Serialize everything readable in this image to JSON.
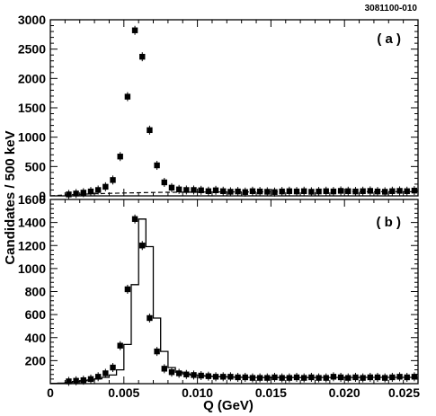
{
  "figure_id": "3081100-010",
  "chart_data": [
    {
      "panel": "( a )",
      "type": "scatter",
      "xlim": [
        0,
        0.025
      ],
      "ylim": [
        0,
        3000
      ],
      "y_ticks": [
        0,
        500,
        1000,
        1500,
        2000,
        2500,
        3000
      ],
      "y_tick_labels": [
        "0",
        "500",
        "1000",
        "1500",
        "2000",
        "2500",
        "3000"
      ],
      "x": [
        0.00125,
        0.00175,
        0.00225,
        0.00275,
        0.00325,
        0.00375,
        0.00425,
        0.00475,
        0.00525,
        0.00575,
        0.00625,
        0.00675,
        0.00725,
        0.00775,
        0.00825,
        0.00875,
        0.00925,
        0.00975,
        0.01025,
        0.01075,
        0.01125,
        0.01175,
        0.01225,
        0.01275,
        0.01325,
        0.01375,
        0.01425,
        0.01475,
        0.01525,
        0.01575,
        0.01625,
        0.01675,
        0.01725,
        0.01775,
        0.01825,
        0.01875,
        0.01925,
        0.01975,
        0.02025,
        0.02075,
        0.02125,
        0.02175,
        0.02225,
        0.02275,
        0.02325,
        0.02375,
        0.02425,
        0.02475
      ],
      "y": [
        25,
        40,
        55,
        75,
        100,
        155,
        270,
        670,
        1690,
        2820,
        2370,
        1120,
        520,
        230,
        140,
        110,
        100,
        100,
        95,
        80,
        95,
        80,
        70,
        75,
        65,
        80,
        75,
        70,
        65,
        75,
        80,
        75,
        80,
        70,
        75,
        80,
        75,
        85,
        80,
        75,
        80,
        85,
        75,
        70,
        80,
        85,
        80,
        90
      ],
      "background_curve": {
        "style": "dashed",
        "x": [
          0,
          0.001,
          0.002,
          0.003,
          0.004,
          0.005,
          0.006,
          0.007,
          0.008,
          0.009,
          0.01,
          0.012,
          0.014,
          0.016,
          0.018,
          0.02,
          0.022,
          0.025
        ],
        "y": [
          0,
          15,
          26,
          35,
          43,
          49,
          54,
          58,
          61,
          63,
          65,
          67,
          68,
          69,
          70,
          70,
          71,
          71
        ]
      }
    },
    {
      "panel": "( b )",
      "type": "scatter",
      "xlim": [
        0,
        0.025
      ],
      "ylim": [
        0,
        1600
      ],
      "y_ticks": [
        200,
        400,
        600,
        800,
        1000,
        1200,
        1400,
        1600
      ],
      "y_tick_labels": [
        "200",
        "400",
        "600",
        "800",
        "1000",
        "1200",
        "1400",
        "1600"
      ],
      "x": [
        0.00125,
        0.00175,
        0.00225,
        0.00275,
        0.00325,
        0.00375,
        0.00425,
        0.00475,
        0.00525,
        0.00575,
        0.00625,
        0.00675,
        0.00725,
        0.00775,
        0.00825,
        0.00875,
        0.00925,
        0.00975,
        0.01025,
        0.01075,
        0.01125,
        0.01175,
        0.01225,
        0.01275,
        0.01325,
        0.01375,
        0.01425,
        0.01475,
        0.01525,
        0.01575,
        0.01625,
        0.01675,
        0.01725,
        0.01775,
        0.01825,
        0.01875,
        0.01925,
        0.01975,
        0.02025,
        0.02075,
        0.02125,
        0.02175,
        0.02225,
        0.02275,
        0.02325,
        0.02375,
        0.02425,
        0.02475
      ],
      "y": [
        20,
        25,
        30,
        40,
        60,
        90,
        140,
        330,
        820,
        1430,
        1200,
        570,
        280,
        130,
        100,
        90,
        80,
        75,
        70,
        65,
        60,
        60,
        60,
        55,
        55,
        50,
        50,
        50,
        55,
        50,
        50,
        55,
        50,
        55,
        50,
        50,
        60,
        55,
        50,
        55,
        50,
        55,
        55,
        50,
        55,
        60,
        55,
        60
      ],
      "fit_histogram": {
        "style": "solid-step",
        "bin_edges": [
          0,
          0.0005,
          0.001,
          0.0015,
          0.002,
          0.0025,
          0.003,
          0.0035,
          0.004,
          0.0045,
          0.005,
          0.0055,
          0.006,
          0.0065,
          0.007,
          0.0075,
          0.008,
          0.0085,
          0.009,
          0.0095,
          0.01,
          0.0105,
          0.011,
          0.0115,
          0.012,
          0.0125,
          0.013,
          0.0135,
          0.014,
          0.0145,
          0.015,
          0.0155,
          0.016,
          0.0165,
          0.017,
          0.0175,
          0.018,
          0.0185,
          0.019,
          0.0195,
          0.02,
          0.0205,
          0.021,
          0.0215,
          0.022,
          0.0225,
          0.023,
          0.0235,
          0.024,
          0.0245,
          0.025
        ],
        "values": [
          2,
          5,
          10,
          18,
          25,
          32,
          42,
          55,
          75,
          120,
          340,
          860,
          1430,
          1190,
          570,
          280,
          140,
          100,
          85,
          75,
          70,
          65,
          62,
          60,
          58,
          56,
          55,
          54,
          54,
          53,
          53,
          53,
          53,
          53,
          53,
          53,
          54,
          54,
          54,
          54,
          54,
          54,
          55,
          55,
          55,
          55,
          55,
          55,
          55,
          55
        ]
      }
    }
  ],
  "shared_x_axis": {
    "ticks": [
      0,
      0.005,
      0.01,
      0.015,
      0.02,
      0.025
    ],
    "tick_labels": [
      "0",
      "0.005",
      "0.010",
      "0.015",
      "0.020",
      "0.025"
    ],
    "label": "Q (GeV)"
  },
  "y_axis_label": "Candidates / 500 keV"
}
